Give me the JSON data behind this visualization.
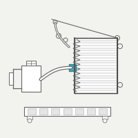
{
  "bg_color": "#f2f2ee",
  "highlight_color": "#3aadbe",
  "line_color": "#666666",
  "dark_line": "#444444",
  "fig_width": 2.0,
  "fig_height": 2.0,
  "dpi": 100
}
